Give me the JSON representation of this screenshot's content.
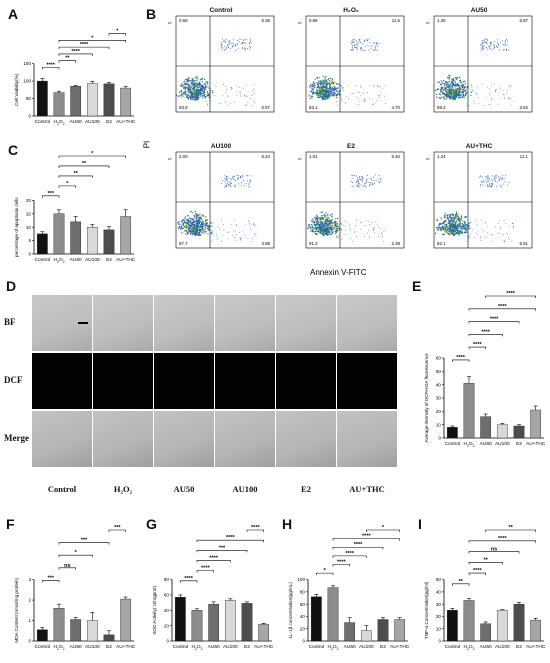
{
  "panels": {
    "A": "A",
    "B": "B",
    "C": "C",
    "D": "D",
    "E": "E",
    "F": "F",
    "G": "G",
    "H": "H",
    "I": "I"
  },
  "flow": {
    "ylabel": "PI",
    "xlabel": "Annexin V-FITC",
    "plots": [
      {
        "title": "Control",
        "q": [
          "0.68",
          "5.36",
          "93.0",
          "0.97"
        ]
      },
      {
        "title": "H₂O₂",
        "q": [
          "0.68",
          "11.5",
          "83.1",
          "4.70"
        ]
      },
      {
        "title": "AU50",
        "q": [
          "1.35",
          "6.87",
          "88.2",
          "3.62"
        ]
      },
      {
        "title": "AU100",
        "q": [
          "2.00",
          "6.43",
          "87.7",
          "3.88"
        ]
      },
      {
        "title": "E2",
        "q": [
          "1.01",
          "5.40",
          "91.2",
          "2.38"
        ]
      },
      {
        "title": "AU+THC",
        "q": [
          "1.24",
          "11.1",
          "82.1",
          "5.61"
        ]
      }
    ]
  },
  "micro": {
    "rows": [
      "BF",
      "DCF",
      "Merge"
    ],
    "cols": [
      "Control",
      "H₂O₂",
      "AU50",
      "AU100",
      "E2",
      "AU+THC"
    ]
  },
  "colors": {
    "control": "#111111",
    "h2o2": "#8c8c8c",
    "au50": "#6e6e6e",
    "au100": "#d9d9d9",
    "e2": "#4d4d4d",
    "authc": "#a6a6a6"
  },
  "chart_data": [
    {
      "id": "A",
      "type": "bar",
      "categories": [
        "Control",
        "H2O2",
        "AU50",
        "AU100",
        "E2",
        "AU+THC"
      ],
      "values": [
        100,
        67,
        85,
        93,
        92,
        80
      ],
      "errors": [
        8,
        4,
        3,
        6,
        4,
        4
      ],
      "ylabel": "Cell Viability(%)",
      "ylim": [
        0,
        150
      ],
      "yticks": [
        0,
        50,
        100,
        150
      ],
      "sig": [
        {
          "a": 0,
          "b": 1,
          "t": "****",
          "lvl": 3
        },
        {
          "a": 1,
          "b": 2,
          "t": "**",
          "lvl": 4
        },
        {
          "a": 1,
          "b": 3,
          "t": "****",
          "lvl": 5
        },
        {
          "a": 1,
          "b": 4,
          "t": "****",
          "lvl": 6
        },
        {
          "a": 1,
          "b": 5,
          "t": "*",
          "lvl": 7
        },
        {
          "a": 4,
          "b": 5,
          "t": "*",
          "lvl": 8
        }
      ]
    },
    {
      "id": "C",
      "type": "bar",
      "categories": [
        "Control",
        "H2O2",
        "AU50",
        "AU100",
        "E2",
        "AU+THC"
      ],
      "values": [
        7.5,
        15,
        12,
        10,
        9,
        14
      ],
      "errors": [
        0.8,
        1.5,
        2,
        1,
        1.2,
        2.5
      ],
      "ylabel": "percentage of apoptosis cells",
      "ylim": [
        0,
        20
      ],
      "yticks": [
        0,
        5,
        10,
        15,
        20
      ],
      "sig": [
        {
          "a": 0,
          "b": 1,
          "t": "***",
          "lvl": 1
        },
        {
          "a": 1,
          "b": 2,
          "t": "*",
          "lvl": 2
        },
        {
          "a": 1,
          "b": 3,
          "t": "**",
          "lvl": 3
        },
        {
          "a": 1,
          "b": 4,
          "t": "**",
          "lvl": 4
        },
        {
          "a": 1,
          "b": 5,
          "t": "*",
          "lvl": 5
        }
      ]
    },
    {
      "id": "E",
      "type": "bar",
      "categories": [
        "Control",
        "H2O2",
        "AU50",
        "AU100",
        "E2",
        "AU+THC"
      ],
      "values": [
        8,
        41,
        16,
        10,
        9,
        21
      ],
      "errors": [
        1,
        5,
        2,
        1,
        1,
        3
      ],
      "ylabel": "Average intensity of DCFH-DA fluorescence",
      "ylim": [
        0,
        60
      ],
      "yticks": [
        0,
        10,
        20,
        30,
        40,
        50,
        60
      ],
      "sig": [
        {
          "a": 0,
          "b": 1,
          "t": "****",
          "lvl": 1
        },
        {
          "a": 1,
          "b": 2,
          "t": "****",
          "lvl": 2
        },
        {
          "a": 1,
          "b": 3,
          "t": "****",
          "lvl": 3
        },
        {
          "a": 1,
          "b": 4,
          "t": "****",
          "lvl": 4
        },
        {
          "a": 1,
          "b": 5,
          "t": "****",
          "lvl": 5
        },
        {
          "a": 2,
          "b": 5,
          "t": "****",
          "lvl": 6
        }
      ]
    },
    {
      "id": "F",
      "type": "bar",
      "categories": [
        "Control",
        "H2O2",
        "AU50",
        "AU100",
        "E2",
        "AU+THC"
      ],
      "values": [
        0.55,
        1.6,
        1.05,
        1.0,
        0.3,
        2.05
      ],
      "errors": [
        0.1,
        0.2,
        0.1,
        0.4,
        0.2,
        0.1
      ],
      "ylabel": "MDA Content (nmol/mg protein)",
      "ylim": [
        0,
        3
      ],
      "yticks": [
        0,
        1,
        2,
        3
      ],
      "sig": [
        {
          "a": 0,
          "b": 1,
          "t": "***",
          "lvl": 1
        },
        {
          "a": 1,
          "b": 2,
          "t": "ns",
          "lvl": 2
        },
        {
          "a": 1,
          "b": 3,
          "t": "*",
          "lvl": 3
        },
        {
          "a": 1,
          "b": 4,
          "t": "***",
          "lvl": 4
        },
        {
          "a": 4,
          "b": 5,
          "t": "***",
          "lvl": 5
        }
      ]
    },
    {
      "id": "G",
      "type": "bar",
      "categories": [
        "Control",
        "H2O2",
        "AU50",
        "AU100",
        "E2",
        "AU+THC"
      ],
      "values": [
        57,
        40,
        48,
        53,
        49,
        22
      ],
      "errors": [
        3,
        2,
        3,
        2,
        2,
        1
      ],
      "ylabel": "SOD Activity( U/mgprot)",
      "ylim": [
        0,
        80
      ],
      "yticks": [
        0,
        20,
        40,
        60,
        80
      ],
      "sig": [
        {
          "a": 0,
          "b": 1,
          "t": "****",
          "lvl": 1
        },
        {
          "a": 1,
          "b": 2,
          "t": "****",
          "lvl": 2
        },
        {
          "a": 1,
          "b": 3,
          "t": "****",
          "lvl": 3
        },
        {
          "a": 1,
          "b": 4,
          "t": "***",
          "lvl": 4
        },
        {
          "a": 1,
          "b": 5,
          "t": "****",
          "lvl": 5
        },
        {
          "a": 4,
          "b": 5,
          "t": "****",
          "lvl": 6
        }
      ]
    },
    {
      "id": "H",
      "type": "bar",
      "categories": [
        "Control",
        "H2O2",
        "AU50",
        "AU100",
        "E2",
        "AU+THC"
      ],
      "values": [
        72,
        87,
        30,
        17,
        35,
        35
      ],
      "errors": [
        4,
        3,
        8,
        8,
        3,
        3
      ],
      "ylabel": "1L-1β concentration(pg/mL)",
      "ylim": [
        0,
        100
      ],
      "yticks": [
        0,
        20,
        40,
        60,
        80,
        100
      ],
      "sig": [
        {
          "a": 0,
          "b": 1,
          "t": "*",
          "lvl": 1
        },
        {
          "a": 1,
          "b": 2,
          "t": "****",
          "lvl": 2
        },
        {
          "a": 1,
          "b": 3,
          "t": "****",
          "lvl": 3
        },
        {
          "a": 1,
          "b": 4,
          "t": "****",
          "lvl": 4
        },
        {
          "a": 1,
          "b": 5,
          "t": "****",
          "lvl": 5
        },
        {
          "a": 3,
          "b": 5,
          "t": "*",
          "lvl": 6
        }
      ]
    },
    {
      "id": "I",
      "type": "bar",
      "categories": [
        "Control",
        "H2O2",
        "AU50",
        "AU100",
        "E2",
        "AU+THC"
      ],
      "values": [
        25,
        33,
        14,
        25,
        30,
        17
      ],
      "errors": [
        1.5,
        1.5,
        1.5,
        0.5,
        1.5,
        1.5
      ],
      "ylabel": "TNF-α Concentration(pg/ml)",
      "ylim": [
        0,
        50
      ],
      "yticks": [
        0,
        10,
        20,
        30,
        40,
        50
      ],
      "sig": [
        {
          "a": 0,
          "b": 1,
          "t": "**",
          "lvl": 1
        },
        {
          "a": 1,
          "b": 2,
          "t": "****",
          "lvl": 2
        },
        {
          "a": 1,
          "b": 3,
          "t": "**",
          "lvl": 3
        },
        {
          "a": 1,
          "b": 4,
          "t": "ns",
          "lvl": 4
        },
        {
          "a": 1,
          "b": 5,
          "t": "****",
          "lvl": 5
        },
        {
          "a": 2,
          "b": 5,
          "t": "**",
          "lvl": 6
        }
      ]
    }
  ]
}
